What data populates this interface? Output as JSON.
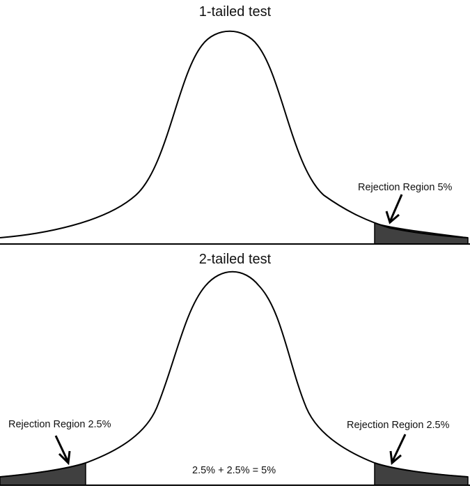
{
  "colors": {
    "curve": "#000000",
    "shaded_region": "#404040",
    "background": "#ffffff"
  },
  "panels": [
    {
      "title": "1-tailed test",
      "regions": [
        {
          "label": "Rejection Region 5%",
          "side": "right"
        }
      ]
    },
    {
      "title": "2-tailed test",
      "regions": [
        {
          "label": "Rejection Region 2.5%",
          "side": "left"
        },
        {
          "label": "Rejection Region 2.5%",
          "side": "right"
        }
      ],
      "note": "2.5% + 2.5% = 5%"
    }
  ]
}
